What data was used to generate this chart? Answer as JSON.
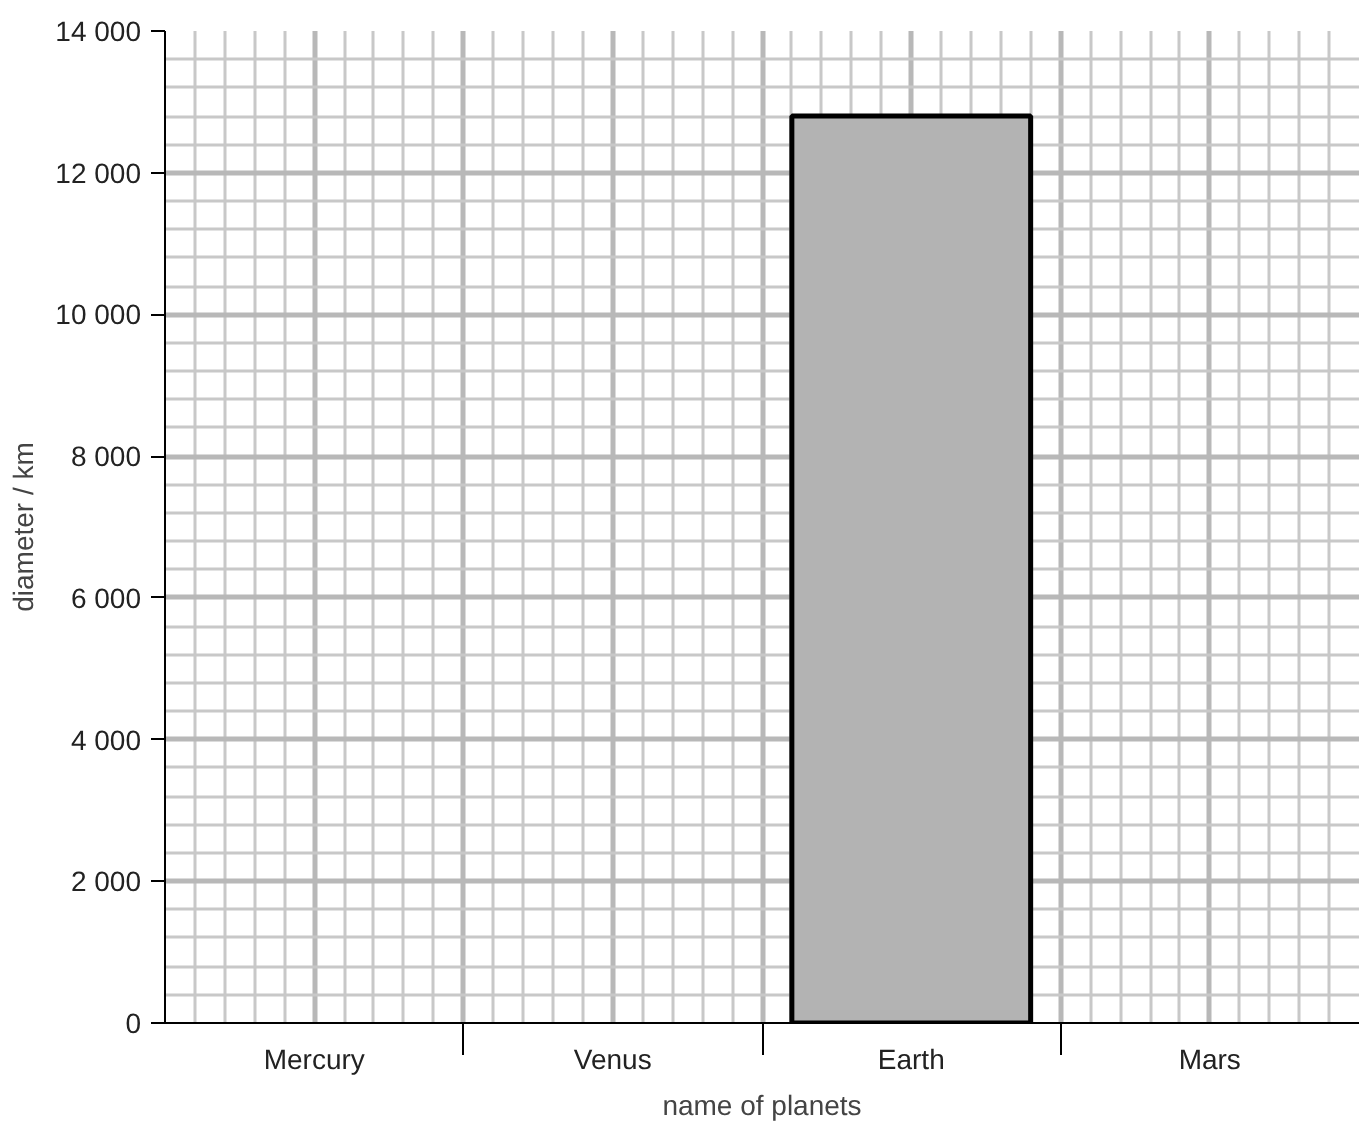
{
  "chart_data": {
    "type": "bar",
    "xlabel": "name of planets",
    "ylabel": "diameter / km",
    "categories": [
      "Mercury",
      "Venus",
      "Earth",
      "Mars"
    ],
    "values": [
      null,
      null,
      12800,
      null
    ],
    "color": "#b3b3b3",
    "ylim": [
      0,
      14000
    ],
    "yticks": [
      {
        "value": 0,
        "label": "0"
      },
      {
        "value": 2000,
        "label": "2 000"
      },
      {
        "value": 4000,
        "label": "4 000"
      },
      {
        "value": 6000,
        "label": "6 000"
      },
      {
        "value": 8000,
        "label": "8 000"
      },
      {
        "value": 10000,
        "label": "10 000"
      },
      {
        "value": 12000,
        "label": "12 000"
      },
      {
        "value": 14000,
        "label": "14 000"
      }
    ],
    "grid": true
  }
}
